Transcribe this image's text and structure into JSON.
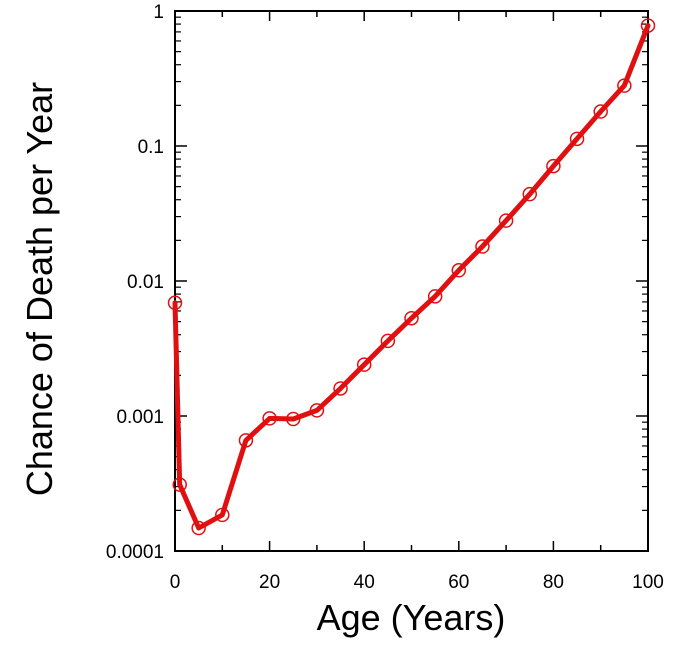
{
  "chart_data": {
    "type": "line",
    "title": "",
    "xlabel": "Age (Years)",
    "ylabel": "Chance of Death per Year",
    "xlim": [
      0,
      100
    ],
    "ylim": [
      0.0001,
      1
    ],
    "yscale": "log",
    "grid": false,
    "legend": "none",
    "x_ticks": [
      {
        "value": 0,
        "label": "0"
      },
      {
        "value": 20,
        "label": "20"
      },
      {
        "value": 40,
        "label": "40"
      },
      {
        "value": 60,
        "label": "60"
      },
      {
        "value": 80,
        "label": "80"
      },
      {
        "value": 100,
        "label": "100"
      }
    ],
    "y_ticks": [
      {
        "value": 0.0001,
        "label": "0.0001"
      },
      {
        "value": 0.001,
        "label": "0.001"
      },
      {
        "value": 0.01,
        "label": "0.01"
      },
      {
        "value": 0.1,
        "label": "0.1"
      },
      {
        "value": 1,
        "label": "1"
      }
    ],
    "series": [
      {
        "color": "#e01010",
        "marker": "open-circle",
        "points": [
          {
            "x": 0,
            "y": 0.0069
          },
          {
            "x": 1,
            "y": 0.00031
          },
          {
            "x": 5,
            "y": 0.000148
          },
          {
            "x": 10,
            "y": 0.000185
          },
          {
            "x": 15,
            "y": 0.00066
          },
          {
            "x": 20,
            "y": 0.00096
          },
          {
            "x": 25,
            "y": 0.00095
          },
          {
            "x": 30,
            "y": 0.0011
          },
          {
            "x": 35,
            "y": 0.0016
          },
          {
            "x": 40,
            "y": 0.0024
          },
          {
            "x": 45,
            "y": 0.0036
          },
          {
            "x": 50,
            "y": 0.0053
          },
          {
            "x": 55,
            "y": 0.0077
          },
          {
            "x": 60,
            "y": 0.012
          },
          {
            "x": 65,
            "y": 0.018
          },
          {
            "x": 70,
            "y": 0.028
          },
          {
            "x": 75,
            "y": 0.044
          },
          {
            "x": 80,
            "y": 0.071
          },
          {
            "x": 85,
            "y": 0.113
          },
          {
            "x": 90,
            "y": 0.18
          },
          {
            "x": 95,
            "y": 0.28
          },
          {
            "x": 100,
            "y": 0.78
          }
        ]
      }
    ]
  }
}
